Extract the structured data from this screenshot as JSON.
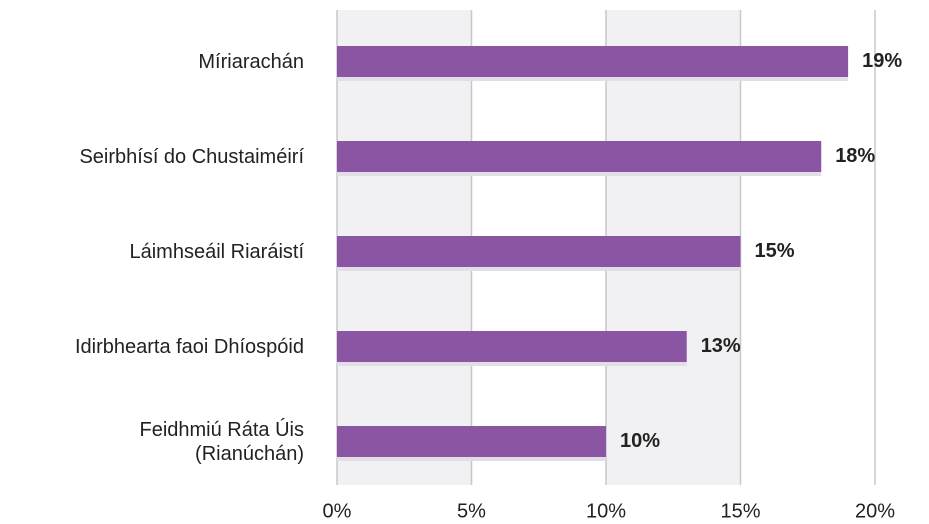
{
  "chart_data": {
    "type": "bar",
    "orientation": "horizontal",
    "categories": [
      "Míriarachán",
      "Seirbhísí do Chustaiméirí",
      "Láimhseáil Riaráistí",
      "Idirbhearta faoi Dhíospóid",
      "Feidhmiú Ráta Úis\n(Rianúchán)"
    ],
    "values": [
      19,
      18,
      15,
      13,
      10
    ],
    "value_labels": [
      "19%",
      "18%",
      "15%",
      "13%",
      "10%"
    ],
    "color": "#8a55a3",
    "xlim": [
      0,
      20
    ],
    "xticks": [
      {
        "value": 0,
        "label": "0%"
      },
      {
        "value": 5,
        "label": "5%"
      },
      {
        "value": 10,
        "label": "10%"
      },
      {
        "value": 15,
        "label": "15%"
      },
      {
        "value": 20,
        "label": "20%"
      }
    ],
    "grid": true
  }
}
